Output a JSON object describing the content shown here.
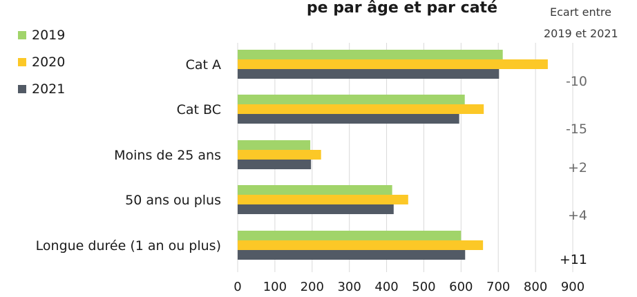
{
  "chart_data": {
    "type": "bar",
    "orientation": "horizontal",
    "title": "pe par âge et par caté",
    "categories": [
      "Cat A",
      "Cat BC",
      "Moins de 25 ans",
      "50 ans ou plus",
      "Longue durée (1 an ou plus)"
    ],
    "series": [
      {
        "name": "2019",
        "color": "#a1d46a",
        "values": [
          712,
          610,
          195,
          415,
          600
        ]
      },
      {
        "name": "2020",
        "color": "#fcc827",
        "values": [
          833,
          661,
          224,
          458,
          659
        ]
      },
      {
        "name": "2021",
        "color": "#525a65",
        "values": [
          702,
          595,
          197,
          419,
          611
        ]
      }
    ],
    "x_ticks": [
      "0",
      "100",
      "200",
      "300",
      "400",
      "500",
      "600",
      "700",
      "800",
      "900"
    ],
    "xlim": [
      0,
      900
    ],
    "grid": "vertical",
    "legend_position": "top-left",
    "ecart": {
      "header_line1": "Ecart entre",
      "header_line2": "2019 et 2021",
      "values": [
        "-10",
        "-15",
        "+2",
        "+4",
        "+11"
      ],
      "emphasized": [
        false,
        false,
        false,
        false,
        true
      ]
    }
  }
}
